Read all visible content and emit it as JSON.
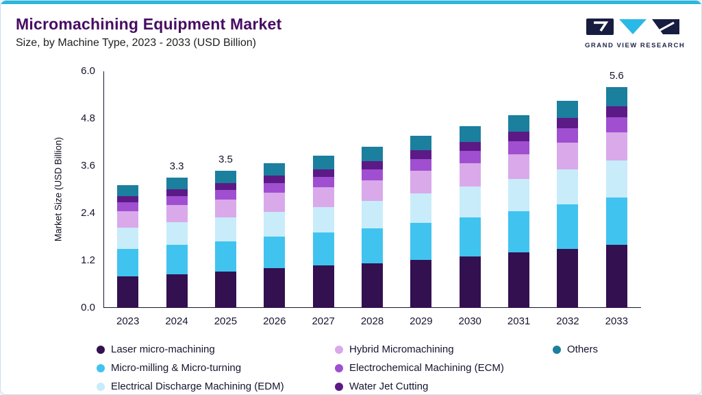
{
  "header": {
    "title": "Micromachining Equipment Market",
    "subtitle": "Size, by Machine Type, 2023 - 2033 (USD Billion)",
    "logo_text": "GRAND VIEW RESEARCH"
  },
  "brand": {
    "accent_teal": "#2bb7dc",
    "logo_navy": "#161d40",
    "logo_cyan": "#2ab9e6",
    "title_purple": "#470b63"
  },
  "chart_data": {
    "type": "bar",
    "stacked": true,
    "title": "Micromachining Equipment Market Size, by Machine Type, 2023 - 2033 (USD Billion)",
    "xlabel": "",
    "ylabel": "Market Size (USD Billion)",
    "ylim": [
      0,
      6
    ],
    "yticks": [
      "0.0",
      "1.2",
      "2.4",
      "3.6",
      "4.8",
      "6.0"
    ],
    "grid": false,
    "legend_position": "bottom",
    "categories": [
      "2023",
      "2024",
      "2025",
      "2026",
      "2027",
      "2028",
      "2029",
      "2030",
      "2031",
      "2032",
      "2033"
    ],
    "series": [
      {
        "name": "Laser micro-machining",
        "color": "#331050",
        "values": [
          0.8,
          0.85,
          0.92,
          1.0,
          1.08,
          1.13,
          1.21,
          1.3,
          1.4,
          1.5,
          1.6
        ]
      },
      {
        "name": "Micro-milling & Micro-turning",
        "color": "#41c3f0",
        "values": [
          0.69,
          0.74,
          0.77,
          0.8,
          0.83,
          0.89,
          0.94,
          0.99,
          1.05,
          1.13,
          1.2
        ]
      },
      {
        "name": "Electrical Discharge Machining (EDM)",
        "color": "#c8ecfa",
        "values": [
          0.54,
          0.58,
          0.61,
          0.62,
          0.65,
          0.7,
          0.74,
          0.78,
          0.82,
          0.88,
          0.94
        ]
      },
      {
        "name": "Hybrid Micromachining",
        "color": "#d9a9ea",
        "values": [
          0.41,
          0.44,
          0.46,
          0.48,
          0.5,
          0.53,
          0.57,
          0.59,
          0.63,
          0.68,
          0.72
        ]
      },
      {
        "name": "Electrochemical Machining (ECM)",
        "color": "#a04fd0",
        "values": [
          0.22,
          0.23,
          0.25,
          0.25,
          0.26,
          0.28,
          0.3,
          0.31,
          0.33,
          0.36,
          0.38
        ]
      },
      {
        "name": "Water Jet Cutting",
        "color": "#5c1a87",
        "values": [
          0.16,
          0.17,
          0.18,
          0.19,
          0.19,
          0.21,
          0.22,
          0.23,
          0.25,
          0.26,
          0.28
        ]
      },
      {
        "name": "Others",
        "color": "#1b7f9e",
        "values": [
          0.28,
          0.29,
          0.31,
          0.31,
          0.34,
          0.36,
          0.37,
          0.4,
          0.42,
          0.44,
          0.48
        ]
      }
    ],
    "totals": [
      3.1,
      3.3,
      3.5,
      3.65,
      3.85,
      4.1,
      4.35,
      4.6,
      4.9,
      5.25,
      5.6
    ],
    "annotations": {
      "2024": "3.3",
      "2025": "3.5",
      "2033": "5.6"
    }
  }
}
